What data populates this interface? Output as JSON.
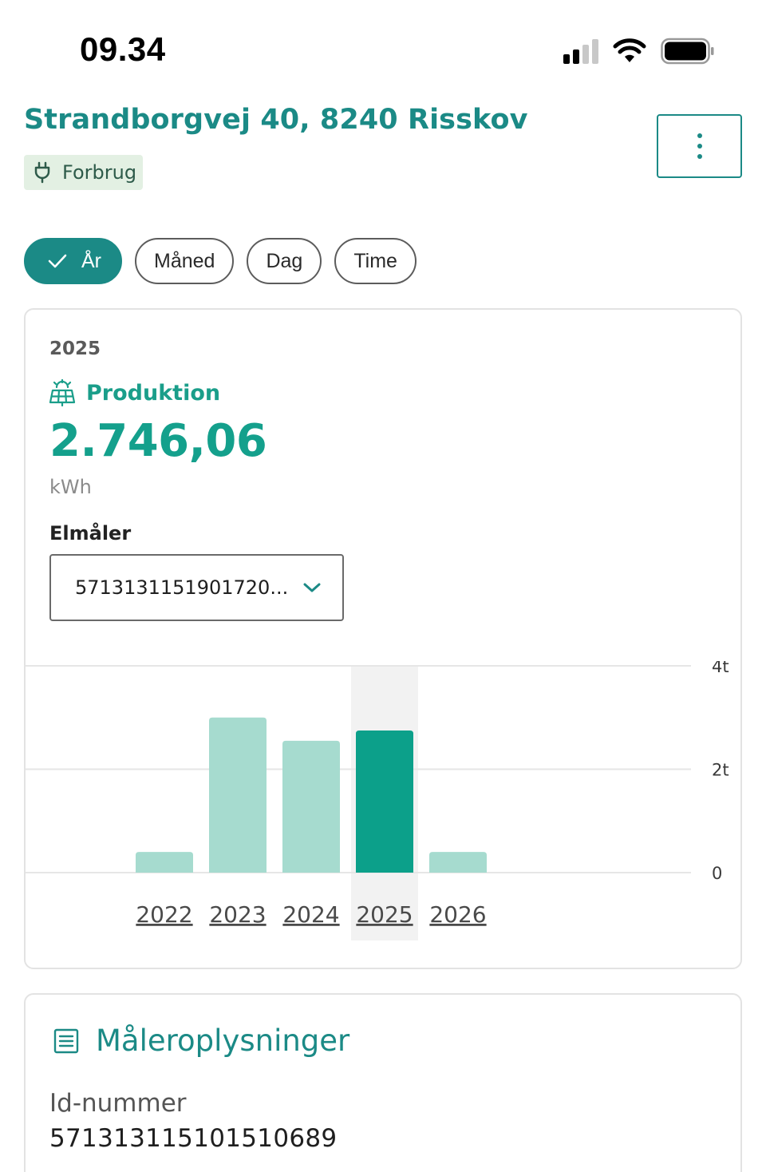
{
  "status_bar": {
    "time": "09.34",
    "signal_bars": 2,
    "battery_level": 0.9
  },
  "header": {
    "address": "Strandborgvej 40, 8240 Risskov",
    "tag_label": "Forbrug",
    "tag_icon": "plug-icon",
    "menu_icon": "kebab-icon"
  },
  "period_chips": [
    {
      "label": "År",
      "active": true
    },
    {
      "label": "Måned",
      "active": false
    },
    {
      "label": "Dag",
      "active": false
    },
    {
      "label": "Time",
      "active": false
    }
  ],
  "summary": {
    "year": "2025",
    "type_label": "Produktion",
    "type_icon": "solar-panel-icon",
    "value": "2.746,06",
    "unit": "kWh",
    "meter_label": "Elmåler",
    "meter_selected": "5713131151901720..."
  },
  "chart_data": {
    "type": "bar",
    "categories": [
      "2022",
      "2023",
      "2024",
      "2025",
      "2026"
    ],
    "values": [
      0.4,
      3.0,
      2.55,
      2.75,
      0.4
    ],
    "selected": "2025",
    "y_ticks": [
      "0",
      "2t",
      "4t"
    ],
    "ylim": [
      0,
      4
    ],
    "grid": true,
    "colors": {
      "bar": "#a6dbcf",
      "selected_bar": "#0ca08a",
      "selected_bg": "#f2f2f2"
    }
  },
  "meter_info": {
    "title": "Måleroplysninger",
    "icon": "document-icon",
    "id_label": "Id-nummer",
    "id_value": "571313115101510689"
  }
}
